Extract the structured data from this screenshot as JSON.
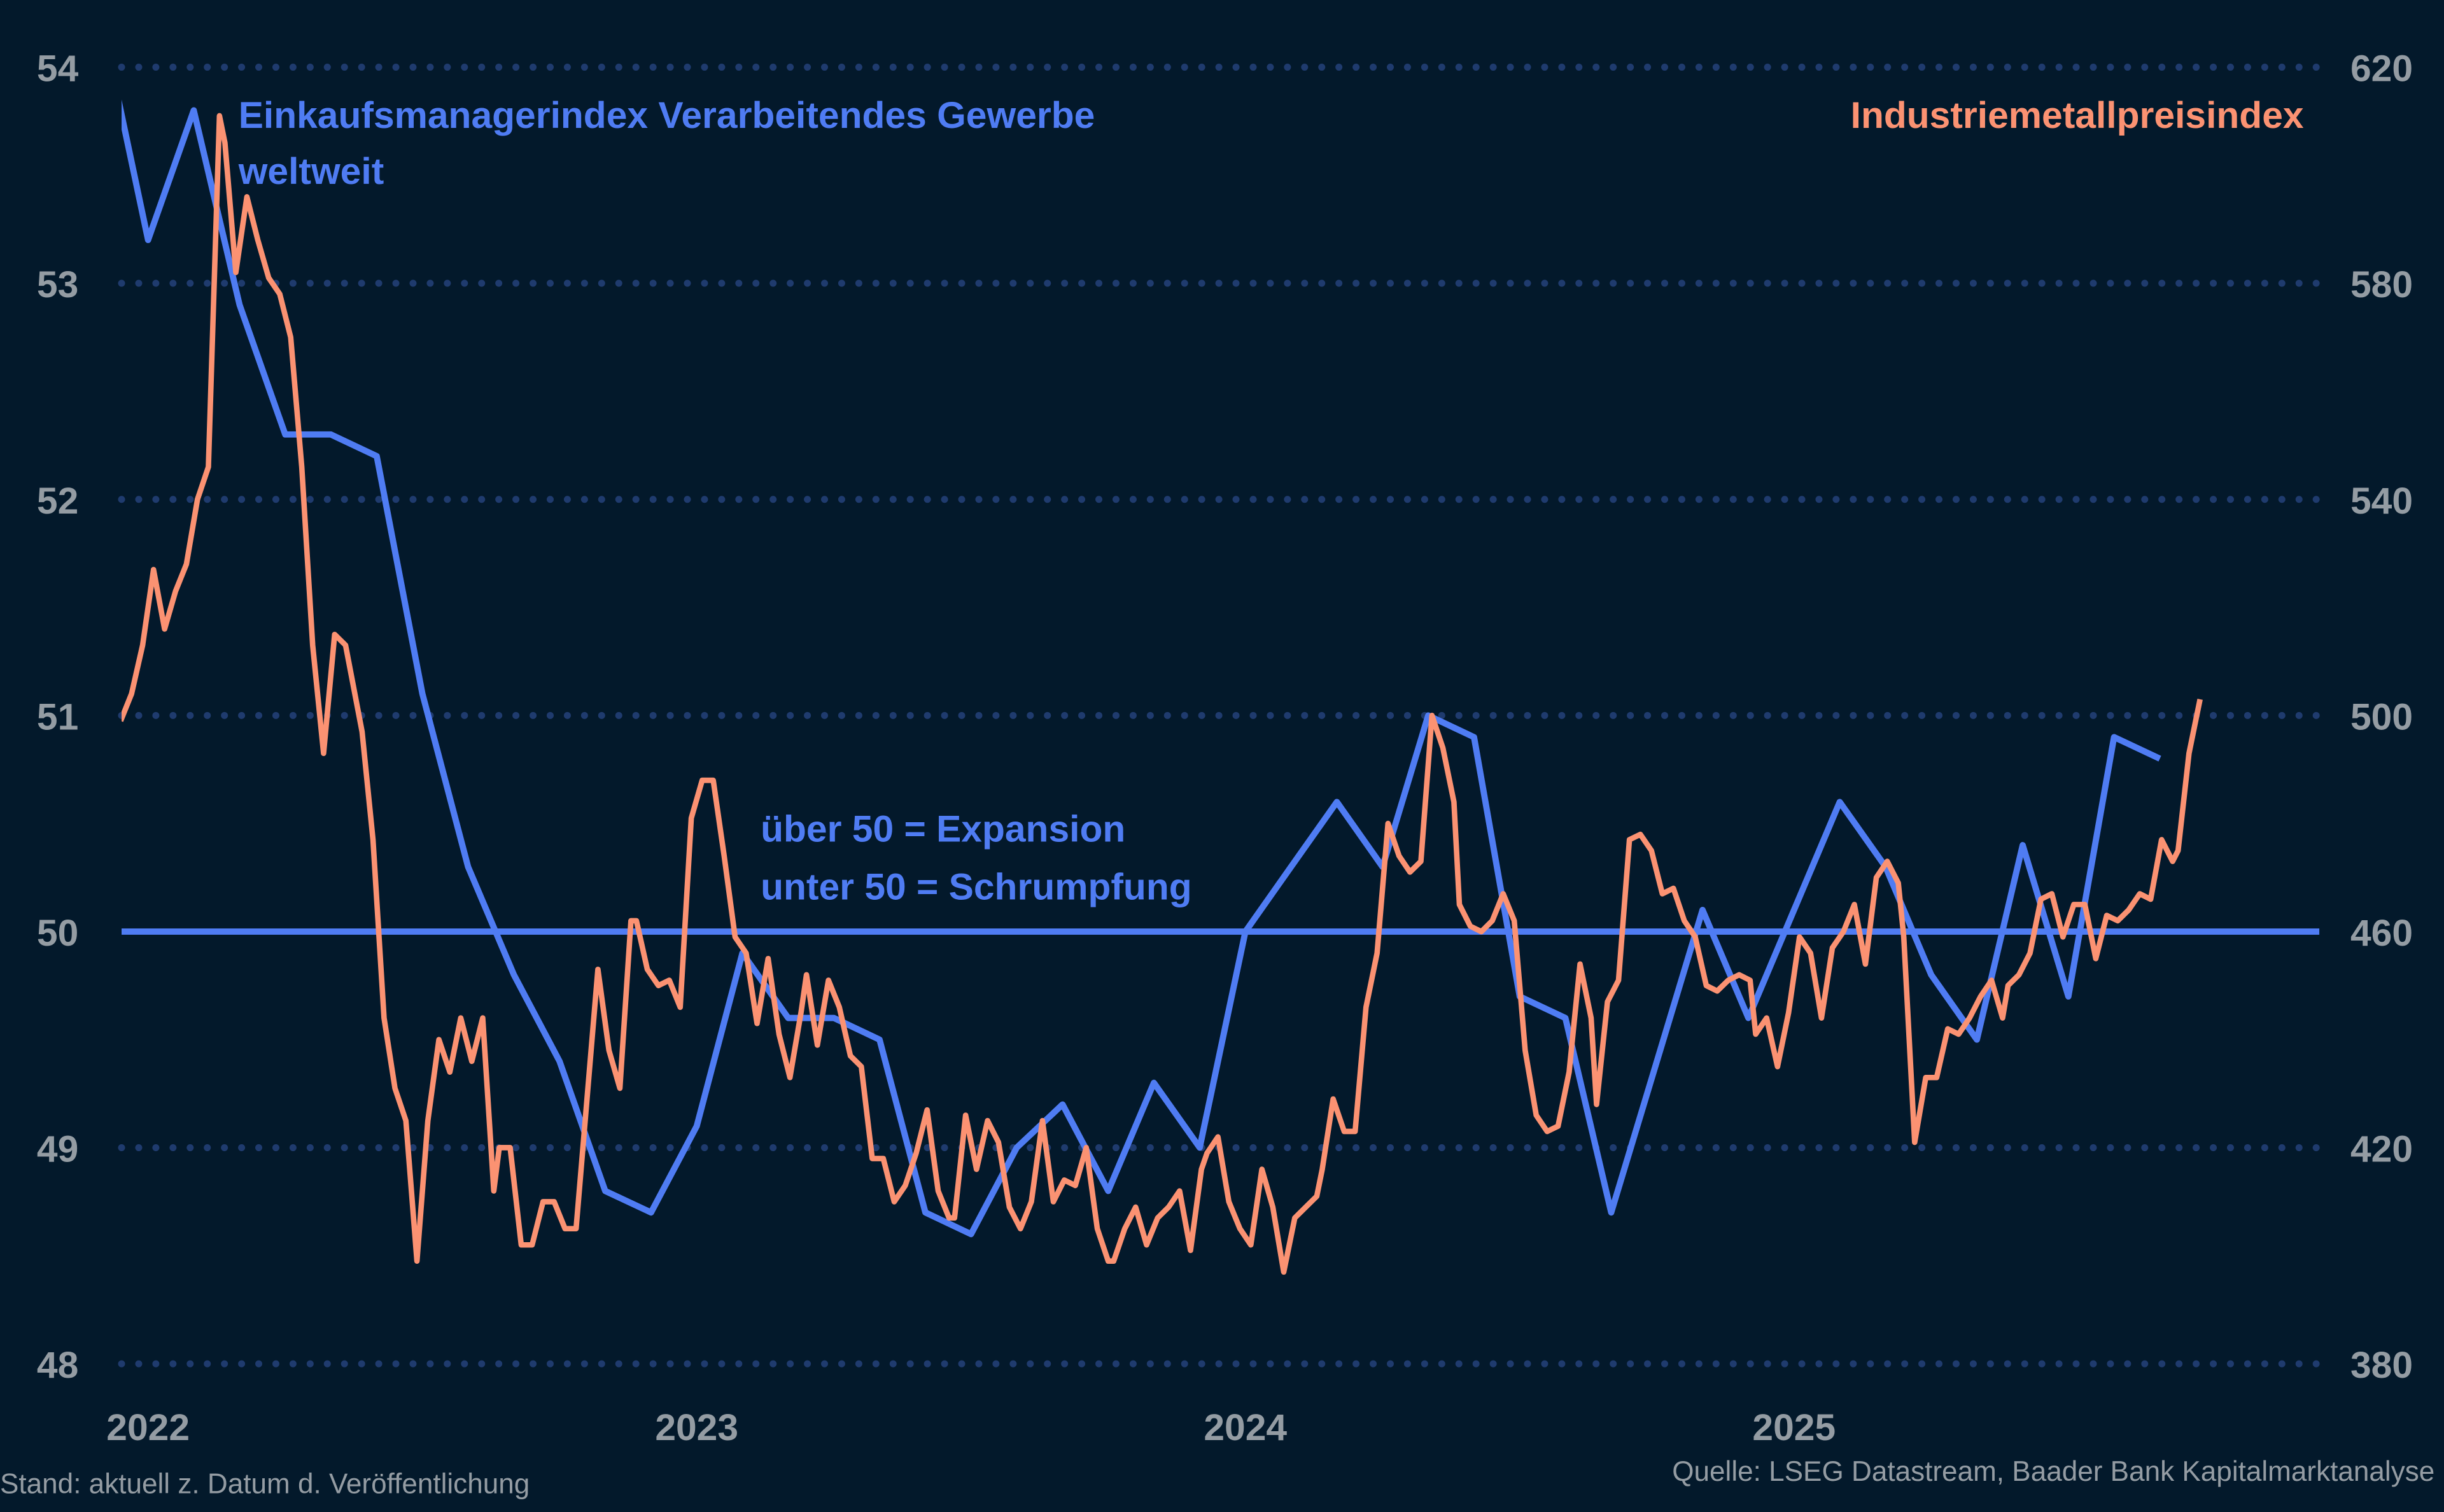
{
  "chart_data": {
    "type": "line",
    "title": "",
    "x_axis": {
      "type": "date",
      "ticks": [
        "2022",
        "2023",
        "2024",
        "2025"
      ],
      "range": [
        2021.95,
        2025.96
      ]
    },
    "y_left": {
      "ticks": [
        "48",
        "49",
        "50",
        "51",
        "52",
        "53",
        "54"
      ],
      "range": [
        48,
        54
      ]
    },
    "y_right": {
      "ticks": [
        "380",
        "420",
        "460",
        "500",
        "540",
        "580",
        "620"
      ],
      "range": [
        380,
        620
      ]
    },
    "grid": "dotted horizontal",
    "reference_line": {
      "axis": "left",
      "value": 50
    },
    "annotation": {
      "line1": "über 50 = Expansion",
      "line2": "unter 50 = Schrumpfung"
    },
    "series": [
      {
        "name_line1": "Einkaufsmanagerindex Verarbeitendes Gewerbe",
        "name_line2": "weltweit",
        "axis": "left",
        "color": "#4f7cf3",
        "frequency": "monthly",
        "dates": [
          "2021-12",
          "2022-01",
          "2022-02",
          "2022-03",
          "2022-04",
          "2022-05",
          "2022-06",
          "2022-07",
          "2022-08",
          "2022-09",
          "2022-10",
          "2022-11",
          "2022-12",
          "2023-01",
          "2023-02",
          "2023-03",
          "2023-04",
          "2023-05",
          "2023-06",
          "2023-07",
          "2023-08",
          "2023-09",
          "2023-10",
          "2023-11",
          "2023-12",
          "2024-01",
          "2024-02",
          "2024-03",
          "2024-04",
          "2024-05",
          "2024-06",
          "2024-07",
          "2024-08",
          "2024-09",
          "2024-10",
          "2024-11",
          "2024-12",
          "2025-01",
          "2025-02",
          "2025-03",
          "2025-04",
          "2025-05",
          "2025-06",
          "2025-07",
          "2025-08",
          "2025-09"
        ],
        "values": [
          54.2,
          53.2,
          53.8,
          52.9,
          52.3,
          52.3,
          52.2,
          51.1,
          50.3,
          49.8,
          49.4,
          48.8,
          48.7,
          49.1,
          49.9,
          49.6,
          49.6,
          49.5,
          48.7,
          48.6,
          49.0,
          49.2,
          48.8,
          49.3,
          49.0,
          50.0,
          50.3,
          50.6,
          50.3,
          51.0,
          50.9,
          49.7,
          49.6,
          48.7,
          49.4,
          50.1,
          49.6,
          50.1,
          50.6,
          50.3,
          49.8,
          49.5,
          50.4,
          49.7,
          50.9,
          50.8
        ]
      },
      {
        "name": "Industriemetallpreisindex",
        "axis": "right",
        "color": "#fb9272",
        "frequency": "weekly",
        "points": [
          [
            2021.95,
            499
          ],
          [
            2021.97,
            504
          ],
          [
            2021.99,
            513
          ],
          [
            2022.01,
            527
          ],
          [
            2022.03,
            516
          ],
          [
            2022.05,
            523
          ],
          [
            2022.07,
            528
          ],
          [
            2022.09,
            540
          ],
          [
            2022.11,
            546
          ],
          [
            2022.13,
            611
          ],
          [
            2022.14,
            606
          ],
          [
            2022.16,
            582
          ],
          [
            2022.18,
            596
          ],
          [
            2022.2,
            588
          ],
          [
            2022.22,
            581
          ],
          [
            2022.24,
            578
          ],
          [
            2022.26,
            570
          ],
          [
            2022.28,
            546
          ],
          [
            2022.3,
            513
          ],
          [
            2022.32,
            493
          ],
          [
            2022.34,
            515
          ],
          [
            2022.36,
            513
          ],
          [
            2022.39,
            497
          ],
          [
            2022.41,
            477
          ],
          [
            2022.43,
            444
          ],
          [
            2022.45,
            431
          ],
          [
            2022.47,
            425
          ],
          [
            2022.49,
            399
          ],
          [
            2022.51,
            425
          ],
          [
            2022.53,
            440
          ],
          [
            2022.55,
            434
          ],
          [
            2022.57,
            444
          ],
          [
            2022.59,
            436
          ],
          [
            2022.61,
            444
          ],
          [
            2022.63,
            412
          ],
          [
            2022.64,
            420
          ],
          [
            2022.66,
            420
          ],
          [
            2022.68,
            402
          ],
          [
            2022.7,
            402
          ],
          [
            2022.72,
            410
          ],
          [
            2022.74,
            410
          ],
          [
            2022.76,
            405
          ],
          [
            2022.78,
            405
          ],
          [
            2022.82,
            453
          ],
          [
            2022.84,
            438
          ],
          [
            2022.86,
            431
          ],
          [
            2022.88,
            462
          ],
          [
            2022.89,
            462
          ],
          [
            2022.91,
            453
          ],
          [
            2022.93,
            450
          ],
          [
            2022.95,
            451
          ],
          [
            2022.97,
            446
          ],
          [
            2022.99,
            481
          ],
          [
            2023.01,
            488
          ],
          [
            2023.03,
            488
          ],
          [
            2023.05,
            474
          ],
          [
            2023.07,
            459
          ],
          [
            2023.09,
            456
          ],
          [
            2023.11,
            443
          ],
          [
            2023.13,
            455
          ],
          [
            2023.15,
            441
          ],
          [
            2023.17,
            433
          ],
          [
            2023.19,
            445
          ],
          [
            2023.2,
            452
          ],
          [
            2023.22,
            439
          ],
          [
            2023.24,
            451
          ],
          [
            2023.26,
            446
          ],
          [
            2023.28,
            437
          ],
          [
            2023.3,
            435
          ],
          [
            2023.32,
            418
          ],
          [
            2023.34,
            418
          ],
          [
            2023.36,
            410
          ],
          [
            2023.38,
            413
          ],
          [
            2023.4,
            419
          ],
          [
            2023.42,
            427
          ],
          [
            2023.44,
            412
          ],
          [
            2023.46,
            407
          ],
          [
            2023.47,
            407
          ],
          [
            2023.49,
            426
          ],
          [
            2023.51,
            416
          ],
          [
            2023.53,
            425
          ],
          [
            2023.55,
            421
          ],
          [
            2023.57,
            409
          ],
          [
            2023.59,
            405
          ],
          [
            2023.61,
            410
          ],
          [
            2023.63,
            425
          ],
          [
            2023.65,
            410
          ],
          [
            2023.67,
            414
          ],
          [
            2023.69,
            413
          ],
          [
            2023.71,
            420
          ],
          [
            2023.73,
            405
          ],
          [
            2023.75,
            399
          ],
          [
            2023.76,
            399
          ],
          [
            2023.78,
            405
          ],
          [
            2023.8,
            409
          ],
          [
            2023.82,
            402
          ],
          [
            2023.84,
            407
          ],
          [
            2023.86,
            409
          ],
          [
            2023.88,
            412
          ],
          [
            2023.9,
            401
          ],
          [
            2023.92,
            416
          ],
          [
            2023.93,
            419
          ],
          [
            2023.95,
            422
          ],
          [
            2023.97,
            410
          ],
          [
            2023.99,
            405
          ],
          [
            2024.01,
            402
          ],
          [
            2024.03,
            416
          ],
          [
            2024.05,
            409
          ],
          [
            2024.07,
            397
          ],
          [
            2024.09,
            407
          ],
          [
            2024.11,
            409
          ],
          [
            2024.13,
            411
          ],
          [
            2024.14,
            416
          ],
          [
            2024.16,
            429
          ],
          [
            2024.18,
            423
          ],
          [
            2024.2,
            423
          ],
          [
            2024.22,
            446
          ],
          [
            2024.24,
            456
          ],
          [
            2024.26,
            480
          ],
          [
            2024.28,
            474
          ],
          [
            2024.3,
            471
          ],
          [
            2024.32,
            473
          ],
          [
            2024.34,
            500
          ],
          [
            2024.36,
            494
          ],
          [
            2024.38,
            484
          ],
          [
            2024.39,
            465
          ],
          [
            2024.41,
            461
          ],
          [
            2024.43,
            460
          ],
          [
            2024.45,
            462
          ],
          [
            2024.47,
            467
          ],
          [
            2024.49,
            462
          ],
          [
            2024.51,
            438
          ],
          [
            2024.53,
            426
          ],
          [
            2024.55,
            423
          ],
          [
            2024.57,
            424
          ],
          [
            2024.59,
            434
          ],
          [
            2024.61,
            454
          ],
          [
            2024.63,
            444
          ],
          [
            2024.64,
            428
          ],
          [
            2024.66,
            447
          ],
          [
            2024.68,
            451
          ],
          [
            2024.7,
            477
          ],
          [
            2024.72,
            478
          ],
          [
            2024.74,
            475
          ],
          [
            2024.76,
            467
          ],
          [
            2024.78,
            468
          ],
          [
            2024.8,
            462
          ],
          [
            2024.82,
            459
          ],
          [
            2024.84,
            450
          ],
          [
            2024.86,
            449
          ],
          [
            2024.88,
            451
          ],
          [
            2024.9,
            452
          ],
          [
            2024.92,
            451
          ],
          [
            2024.93,
            441
          ],
          [
            2024.95,
            444
          ],
          [
            2024.97,
            435
          ],
          [
            2024.99,
            445
          ],
          [
            2025.01,
            459
          ],
          [
            2025.03,
            456
          ],
          [
            2025.05,
            444
          ],
          [
            2025.07,
            457
          ],
          [
            2025.09,
            460
          ],
          [
            2025.11,
            465
          ],
          [
            2025.13,
            454
          ],
          [
            2025.15,
            470
          ],
          [
            2025.17,
            473
          ],
          [
            2025.19,
            469
          ],
          [
            2025.2,
            459
          ],
          [
            2025.22,
            421
          ],
          [
            2025.24,
            433
          ],
          [
            2025.26,
            433
          ],
          [
            2025.28,
            442
          ],
          [
            2025.3,
            441
          ],
          [
            2025.32,
            444
          ],
          [
            2025.34,
            448
          ],
          [
            2025.36,
            451
          ],
          [
            2025.38,
            444
          ],
          [
            2025.39,
            450
          ],
          [
            2025.41,
            452
          ],
          [
            2025.43,
            456
          ],
          [
            2025.45,
            466
          ],
          [
            2025.47,
            467
          ],
          [
            2025.49,
            459
          ],
          [
            2025.51,
            465
          ],
          [
            2025.53,
            465
          ],
          [
            2025.55,
            455
          ],
          [
            2025.57,
            463
          ],
          [
            2025.59,
            462
          ],
          [
            2025.61,
            464
          ],
          [
            2025.63,
            467
          ],
          [
            2025.65,
            466
          ],
          [
            2025.67,
            477
          ],
          [
            2025.69,
            473
          ],
          [
            2025.7,
            475
          ],
          [
            2025.72,
            493
          ],
          [
            2025.74,
            503
          ]
        ]
      }
    ]
  },
  "footer": {
    "left": "Stand: aktuell z. Datum d. Veröffentlichung",
    "right": "Quelle: LSEG Datastream, Baader Bank Kapitalmarktanalyse"
  },
  "colors": {
    "background": "#03192b",
    "grid": "#1f3b6e",
    "tick_text": "#949ca3"
  }
}
